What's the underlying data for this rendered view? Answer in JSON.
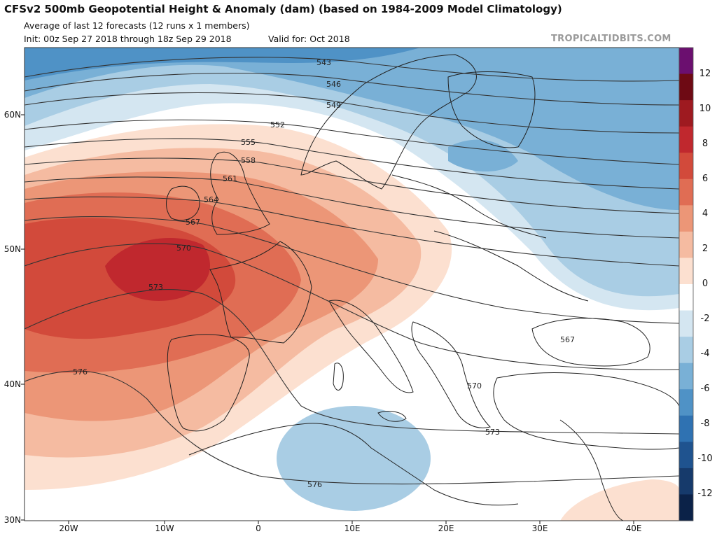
{
  "header": {
    "title": "CFSv2 500mb Geopotential Height & Anomaly (dam) (based on 1984-2009 Model Climatology)",
    "subtitle": "Average of last 12 forecasts (12 runs x 1 members)",
    "init": "Init: 00z Sep 27 2018 through 18z Sep 29 2018",
    "valid": "Valid for: Oct 2018",
    "watermark": "TROPICALTIDBITS.COM"
  },
  "axes": {
    "lat_labels": [
      "60N",
      "50N",
      "40N",
      "30N"
    ],
    "lon_labels": [
      "20W",
      "10W",
      "0",
      "10E",
      "20E",
      "30E",
      "40E"
    ]
  },
  "contours": {
    "labels": [
      "543",
      "546",
      "549",
      "552",
      "555",
      "558",
      "561",
      "564",
      "567",
      "570",
      "573",
      "576",
      "567",
      "570",
      "573",
      "576"
    ]
  },
  "colorbar": {
    "ticks": [
      "12",
      "10",
      "8",
      "6",
      "4",
      "2",
      "0",
      "-2",
      "-4",
      "-6",
      "-8",
      "-10",
      "-12"
    ],
    "colors": [
      "#6b0f6f",
      "#6e0a14",
      "#9e1a20",
      "#c0282e",
      "#d24a3b",
      "#e06d54",
      "#ec9677",
      "#f5bba1",
      "#fce0d0",
      "#ffffff",
      "#d4e6f1",
      "#a9cde4",
      "#79b0d6",
      "#4f92c6",
      "#2f72b2",
      "#1f538f",
      "#163a6b",
      "#0b2248"
    ]
  }
}
